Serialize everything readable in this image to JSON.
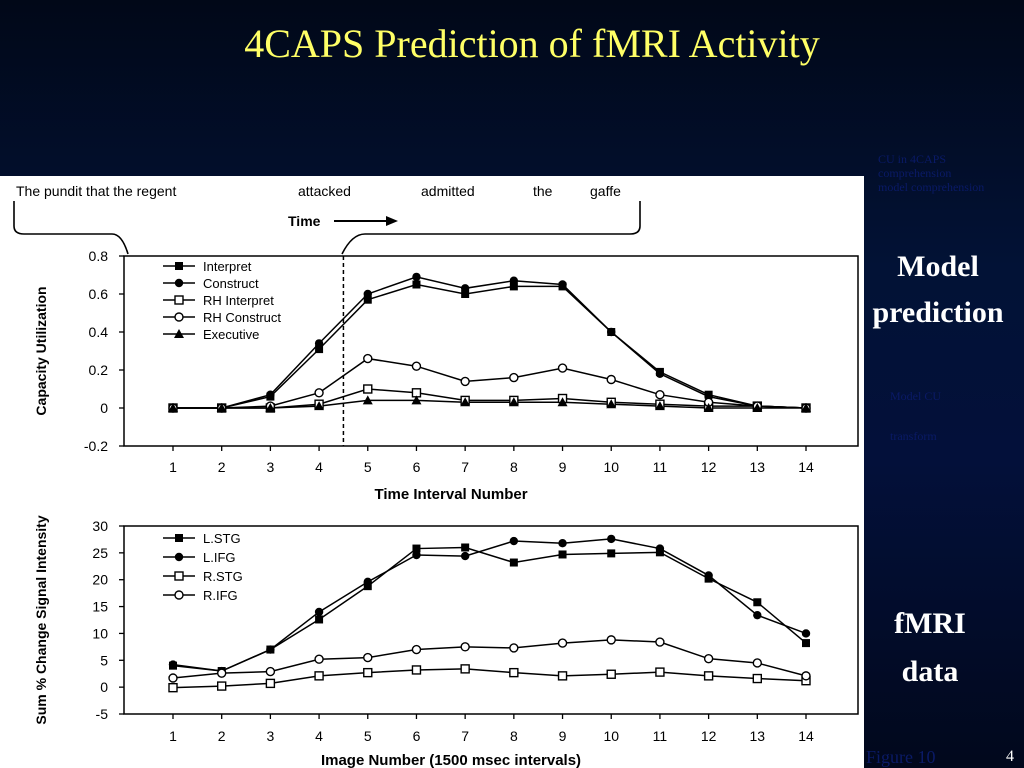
{
  "slide": {
    "title": "4CAPS Prediction of fMRI Activity",
    "page_number": "4",
    "figure_caption": "Figure 10",
    "note_top": [
      "CU in 4CAPS",
      "comprehension",
      "model comprehension"
    ],
    "note_mid": [
      "Model CU",
      "transform"
    ],
    "label_model": [
      "Model",
      "prediction"
    ],
    "label_fmri": [
      "fMRI",
      "data"
    ]
  },
  "sentence": {
    "words": [
      "The pundit that the regent",
      "attacked",
      "admitted",
      "the",
      "gaffe"
    ],
    "time_label": "Time"
  },
  "chart_data": [
    {
      "type": "line",
      "xlabel": "Time Interval Number",
      "ylabel": "Capacity Utilization",
      "ylim": [
        -0.2,
        0.8
      ],
      "yticks": [
        "0.8",
        "0.6",
        "0.4",
        "0.2",
        "0",
        "-0.2"
      ],
      "x": [
        1,
        2,
        3,
        4,
        5,
        6,
        7,
        8,
        9,
        10,
        11,
        12,
        13,
        14
      ],
      "legend_position": "top-left",
      "series": [
        {
          "name": "Interpret",
          "marker": "square-filled",
          "values": [
            0,
            0,
            0.06,
            0.31,
            0.57,
            0.65,
            0.6,
            0.64,
            0.64,
            0.4,
            0.19,
            0.07,
            0.01,
            0
          ]
        },
        {
          "name": "Construct",
          "marker": "circle-filled",
          "values": [
            0,
            0,
            0.07,
            0.34,
            0.6,
            0.69,
            0.63,
            0.67,
            0.65,
            0.4,
            0.18,
            0.06,
            0.01,
            0
          ]
        },
        {
          "name": "RH Interpret",
          "marker": "square-open",
          "values": [
            0,
            0,
            0,
            0.02,
            0.1,
            0.08,
            0.04,
            0.04,
            0.05,
            0.03,
            0.02,
            0.01,
            0.01,
            0
          ]
        },
        {
          "name": "RH Construct",
          "marker": "circle-open",
          "values": [
            0,
            0,
            0.01,
            0.08,
            0.26,
            0.22,
            0.14,
            0.16,
            0.21,
            0.15,
            0.07,
            0.03,
            0.01,
            0
          ]
        },
        {
          "name": "Executive",
          "marker": "triangle-filled",
          "values": [
            0,
            0,
            0,
            0.01,
            0.04,
            0.04,
            0.03,
            0.03,
            0.03,
            0.02,
            0.01,
            0,
            0,
            0
          ]
        }
      ],
      "divider_at_x": 4.5
    },
    {
      "type": "line",
      "xlabel": "Image Number (1500 msec intervals)",
      "ylabel": "Sum % Change Signal Intensity",
      "ylim": [
        -5,
        30
      ],
      "yticks": [
        "30",
        "25",
        "20",
        "15",
        "10",
        "5",
        "0",
        "-5"
      ],
      "x": [
        1,
        2,
        3,
        4,
        5,
        6,
        7,
        8,
        9,
        10,
        11,
        12,
        13,
        14
      ],
      "legend_position": "top-left",
      "series": [
        {
          "name": "L.STG",
          "marker": "square-filled",
          "values": [
            4.0,
            3.0,
            7.0,
            12.6,
            18.8,
            25.8,
            26.0,
            23.2,
            24.7,
            24.9,
            25.1,
            20.2,
            15.8,
            8.2
          ]
        },
        {
          "name": "L.IFG",
          "marker": "circle-filled",
          "values": [
            4.2,
            3.0,
            7.0,
            14.0,
            19.6,
            24.6,
            24.4,
            27.2,
            26.8,
            27.6,
            25.8,
            20.8,
            13.4,
            10.0
          ]
        },
        {
          "name": "R.STG",
          "marker": "square-open",
          "values": [
            -0.1,
            0.2,
            0.7,
            2.1,
            2.7,
            3.2,
            3.4,
            2.7,
            2.1,
            2.4,
            2.8,
            2.1,
            1.6,
            1.2
          ]
        },
        {
          "name": "R.IFG",
          "marker": "circle-open",
          "values": [
            1.7,
            2.6,
            2.9,
            5.2,
            5.5,
            7.0,
            7.5,
            7.3,
            8.2,
            8.8,
            8.4,
            5.3,
            4.5,
            2.1
          ]
        }
      ]
    }
  ]
}
